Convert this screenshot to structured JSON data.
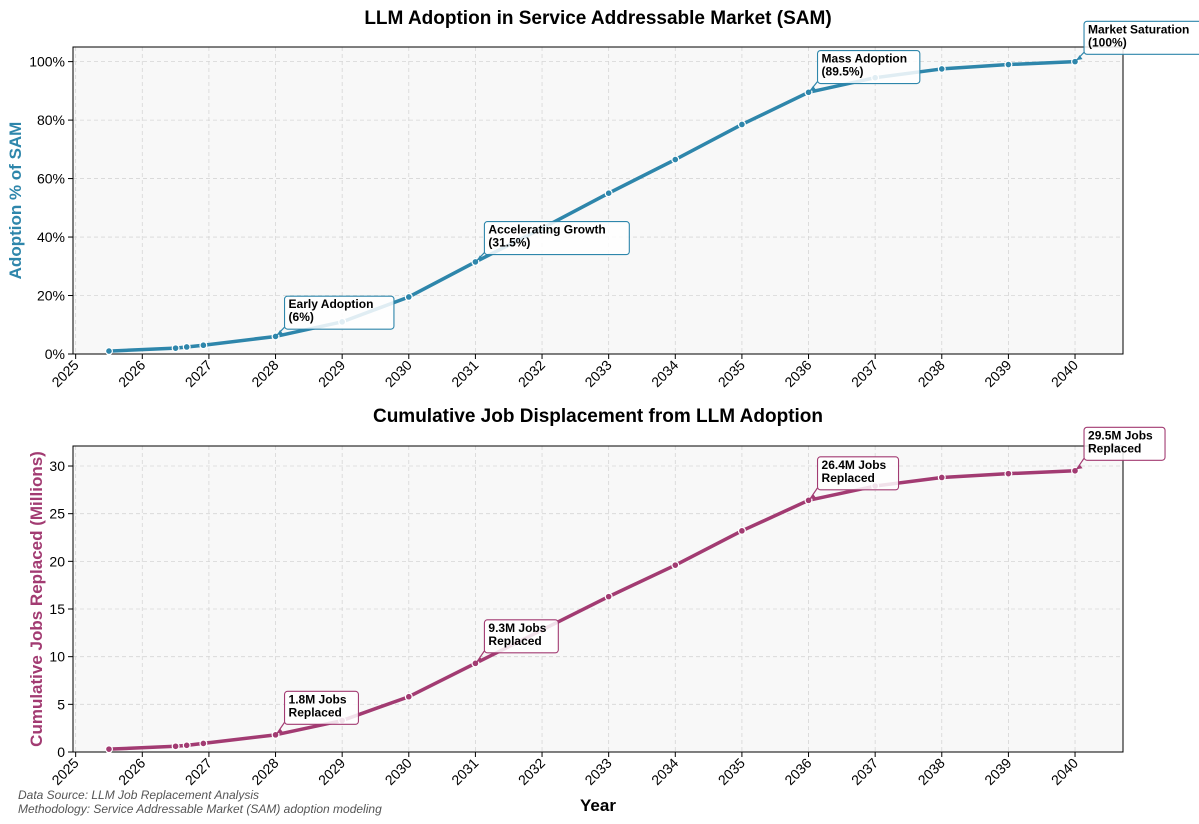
{
  "chart_data": [
    {
      "type": "line",
      "title": "LLM Adoption in Service Addressable Market (SAM)",
      "xlabel": "",
      "ylabel": "Adoption % of SAM",
      "color": "#2e86ab",
      "ylim": [
        0,
        105
      ],
      "xlim": [
        2024.96,
        2040.72
      ],
      "y_ticks": [
        0,
        20,
        40,
        60,
        80,
        100
      ],
      "y_tick_labels": [
        "0%",
        "20%",
        "40%",
        "60%",
        "80%",
        "100%"
      ],
      "x_ticks": [
        2025,
        2026,
        2027,
        2028,
        2029,
        2030,
        2031,
        2032,
        2033,
        2034,
        2035,
        2036,
        2037,
        2038,
        2039,
        2040
      ],
      "x_tick_labels": [
        "2025",
        "2026",
        "2027",
        "2028",
        "2029",
        "2030",
        "2031",
        "2032",
        "2033",
        "2034",
        "2035",
        "2036",
        "2037",
        "2038",
        "2039",
        "2040"
      ],
      "grid": true,
      "series": [
        {
          "x": [
            "2025-07",
            "2026-07",
            "2026-09",
            "2026-12",
            "2028-01",
            "2029-01",
            "2030-01",
            "2031-01",
            "2032-01",
            "2033-01",
            "2034-01",
            "2035-01",
            "2036-01",
            "2037-01",
            "2038-01",
            "2039-01",
            "2040-01"
          ],
          "values": [
            1.0,
            2.0,
            2.4,
            3.0,
            6.0,
            11.0,
            19.5,
            31.5,
            43.0,
            55.0,
            66.5,
            78.5,
            89.5,
            94.5,
            97.5,
            99.0,
            100.0
          ]
        }
      ],
      "annotations": [
        {
          "text": [
            "Early Adoption",
            "(6%)"
          ],
          "x": "2028-01",
          "y": 6.0,
          "text_y": 8.5
        },
        {
          "text": [
            "Accelerating Growth",
            "(31.5%)"
          ],
          "x": "2031-01",
          "y": 31.5,
          "text_y": 34
        },
        {
          "text": [
            "Mass Adoption",
            "(89.5%)"
          ],
          "x": "2036-01",
          "y": 89.5,
          "text_y": 92.5
        },
        {
          "text": [
            "Market Saturation",
            "(100%)"
          ],
          "x": "2040-01",
          "y": 100.0,
          "text_y": 102.5
        }
      ]
    },
    {
      "type": "line",
      "title": "Cumulative Job Displacement from LLM Adoption",
      "xlabel": "Year",
      "ylabel": "Cumulative Jobs Replaced (Millions)",
      "color": "#a23b72",
      "ylim": [
        0,
        32.1
      ],
      "xlim": [
        2024.96,
        2040.72
      ],
      "y_ticks": [
        0,
        5,
        10,
        15,
        20,
        25,
        30
      ],
      "y_tick_labels": [
        "0",
        "5",
        "10",
        "15",
        "20",
        "25",
        "30"
      ],
      "x_ticks": [
        2025,
        2026,
        2027,
        2028,
        2029,
        2030,
        2031,
        2032,
        2033,
        2034,
        2035,
        2036,
        2037,
        2038,
        2039,
        2040
      ],
      "x_tick_labels": [
        "2025",
        "2026",
        "2027",
        "2028",
        "2029",
        "2030",
        "2031",
        "2032",
        "2033",
        "2034",
        "2035",
        "2036",
        "2037",
        "2038",
        "2039",
        "2040"
      ],
      "grid": true,
      "series": [
        {
          "x": [
            "2025-07",
            "2026-07",
            "2026-09",
            "2026-12",
            "2028-01",
            "2029-01",
            "2030-01",
            "2031-01",
            "2032-01",
            "2033-01",
            "2034-01",
            "2035-01",
            "2036-01",
            "2037-01",
            "2038-01",
            "2039-01",
            "2040-01"
          ],
          "values": [
            0.3,
            0.6,
            0.7,
            0.9,
            1.8,
            3.3,
            5.8,
            9.3,
            12.8,
            16.3,
            19.6,
            23.2,
            26.4,
            27.9,
            28.8,
            29.2,
            29.5
          ]
        }
      ],
      "annotations": [
        {
          "text": [
            "1.8M Jobs",
            "Replaced"
          ],
          "x": "2028-01",
          "y": 1.8,
          "text_y": 2.9
        },
        {
          "text": [
            "9.3M Jobs",
            "Replaced"
          ],
          "x": "2031-01",
          "y": 9.3,
          "text_y": 10.4
        },
        {
          "text": [
            "26.4M Jobs",
            "Replaced"
          ],
          "x": "2036-01",
          "y": 26.4,
          "text_y": 27.5
        },
        {
          "text": [
            "29.5M Jobs",
            "Replaced"
          ],
          "x": "2040-01",
          "y": 29.5,
          "text_y": 30.6
        }
      ]
    }
  ],
  "footer": {
    "source": "Data Source: LLM Job Replacement Analysis",
    "methodology": "Methodology: Service Addressable Market (SAM) adoption modeling"
  }
}
